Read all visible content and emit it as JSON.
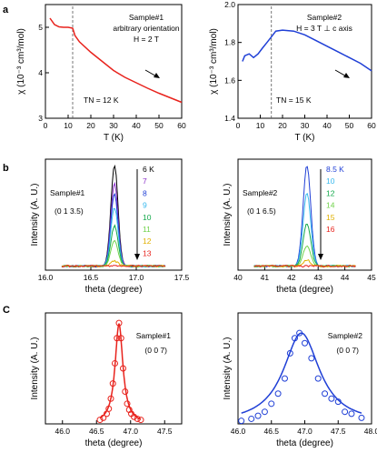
{
  "panel_letters": [
    "a",
    "b",
    "C"
  ],
  "chart_data": [
    {
      "type": "line",
      "panel": "a",
      "xlabel": "T (K)",
      "ylabel": "χ (10⁻³ cm³/mol)",
      "xlim": [
        0,
        60
      ],
      "ylim": [
        3,
        5.5
      ],
      "xticks": [
        0,
        10,
        20,
        30,
        40,
        50,
        60
      ],
      "yticks": [
        3,
        4,
        5
      ],
      "annotations": [
        "Sample#1",
        "arbitrary orientation",
        "H = 2 T",
        "TN = 12 K"
      ],
      "transition_line_x": 12,
      "color": "#e8231d",
      "x": [
        2,
        4,
        6,
        8,
        10,
        12,
        13,
        15,
        20,
        25,
        30,
        35,
        40,
        45,
        50,
        55,
        60
      ],
      "y": [
        5.2,
        5.06,
        5.01,
        5.0,
        5.0,
        4.98,
        4.82,
        4.68,
        4.45,
        4.25,
        4.05,
        3.9,
        3.78,
        3.66,
        3.55,
        3.45,
        3.35
      ]
    },
    {
      "type": "line",
      "panel": "a",
      "xlabel": "T (K)",
      "ylabel": "χ (10⁻³ cm³/mol)",
      "xlim": [
        0,
        60
      ],
      "ylim": [
        1.4,
        2.0
      ],
      "xticks": [
        0,
        10,
        20,
        30,
        40,
        50,
        60
      ],
      "yticks": [
        1.4,
        1.6,
        1.8,
        2.0
      ],
      "annotations": [
        "Sample#2",
        "H = 3 T ⊥ c axis",
        "TN = 15 K"
      ],
      "transition_line_x": 15,
      "color": "#1f3fd6",
      "x": [
        2,
        3,
        5,
        7,
        9,
        11,
        13,
        15,
        17,
        20,
        25,
        30,
        35,
        40,
        45,
        50,
        55,
        60
      ],
      "y": [
        1.7,
        1.73,
        1.74,
        1.72,
        1.74,
        1.77,
        1.8,
        1.83,
        1.86,
        1.865,
        1.86,
        1.84,
        1.81,
        1.78,
        1.75,
        1.72,
        1.69,
        1.65
      ]
    },
    {
      "type": "line",
      "panel": "b",
      "xlabel": "theta (degree)",
      "ylabel": "Intensity (A. U.)",
      "xlim": [
        16.0,
        17.5
      ],
      "xticks": [
        16.0,
        16.5,
        17.0,
        17.5
      ],
      "annotations": [
        "Sample#1",
        "(0 1 3.5)"
      ],
      "peak_center": 16.76,
      "peak_width": 0.055,
      "series": [
        {
          "name": "6 K",
          "color": "#000000",
          "amplitude": 1.0
        },
        {
          "name": "7",
          "color": "#8b2fc9",
          "amplitude": 0.82
        },
        {
          "name": "8",
          "color": "#1f3fd6",
          "amplitude": 0.72
        },
        {
          "name": "9",
          "color": "#36b8ee",
          "amplitude": 0.58
        },
        {
          "name": "10",
          "color": "#12a84a",
          "amplitude": 0.4
        },
        {
          "name": "11",
          "color": "#6fd24a",
          "amplitude": 0.25
        },
        {
          "name": "12",
          "color": "#e0b000",
          "amplitude": 0.05
        },
        {
          "name": "13",
          "color": "#e8231d",
          "amplitude": 0.0
        }
      ]
    },
    {
      "type": "line",
      "panel": "b",
      "xlabel": "theta (degree)",
      "ylabel": "Intensity (A. U.)",
      "xlim": [
        40,
        45
      ],
      "xticks": [
        40,
        41,
        42,
        43,
        44,
        45
      ],
      "annotations": [
        "Sample#2",
        "(0 1 6.5)"
      ],
      "peak_center": 42.58,
      "peak_width": 0.2,
      "series": [
        {
          "name": "8.5 K",
          "color": "#1f3fd6",
          "amplitude": 1.0
        },
        {
          "name": "10",
          "color": "#36b8ee",
          "amplitude": 0.72
        },
        {
          "name": "12",
          "color": "#12a84a",
          "amplitude": 0.42
        },
        {
          "name": "14",
          "color": "#6fd24a",
          "amplitude": 0.2
        },
        {
          "name": "15",
          "color": "#e0b000",
          "amplitude": 0.06
        },
        {
          "name": "16",
          "color": "#e8231d",
          "amplitude": 0.0
        }
      ]
    },
    {
      "type": "scatter",
      "panel": "C",
      "xlabel": "theta (degree)",
      "ylabel": "Intensity (A. U.)",
      "xlim": [
        45.75,
        47.75
      ],
      "xticks": [
        46.0,
        46.5,
        47.0,
        47.5
      ],
      "annotations": [
        "Sample#1",
        "(0 0 7)"
      ],
      "color": "#e8231d",
      "fit_center": 46.83,
      "fit_width": 0.07,
      "x": [
        46.55,
        46.6,
        46.65,
        46.68,
        46.71,
        46.74,
        46.77,
        46.8,
        46.83,
        46.86,
        46.89,
        46.92,
        46.95,
        46.98,
        47.01,
        47.05,
        47.1,
        47.15
      ],
      "y": [
        0.04,
        0.06,
        0.1,
        0.15,
        0.25,
        0.4,
        0.6,
        0.85,
        1.0,
        0.85,
        0.55,
        0.32,
        0.2,
        0.14,
        0.1,
        0.07,
        0.05,
        0.04
      ]
    },
    {
      "type": "scatter",
      "panel": "C",
      "xlabel": "theta (degree)",
      "ylabel": "Intensity (A. U.)",
      "xlim": [
        46.0,
        48.0
      ],
      "xticks": [
        46.0,
        46.5,
        47.0,
        47.5,
        48.0
      ],
      "annotations": [
        "Sample#2",
        "(0 0 7)"
      ],
      "color": "#1f3fd6",
      "fit_center": 46.95,
      "fit_width": 0.33,
      "x": [
        46.05,
        46.2,
        46.3,
        46.4,
        46.5,
        46.6,
        46.7,
        46.78,
        46.85,
        46.92,
        47.0,
        47.1,
        47.2,
        47.3,
        47.4,
        47.5,
        47.6,
        47.7,
        47.85
      ],
      "y": [
        0.03,
        0.05,
        0.08,
        0.12,
        0.2,
        0.3,
        0.45,
        0.7,
        0.85,
        0.9,
        0.8,
        0.65,
        0.45,
        0.3,
        0.25,
        0.22,
        0.12,
        0.1,
        0.06
      ]
    }
  ]
}
